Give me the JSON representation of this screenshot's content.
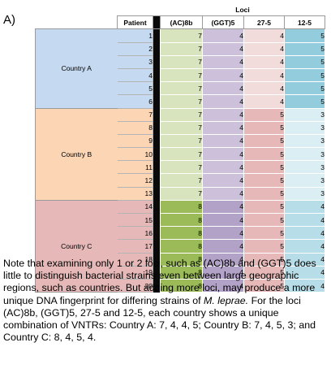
{
  "panel_label": "A)",
  "table": {
    "group_header": "Loci",
    "columns": [
      "Patient",
      "(AC)8b",
      "(GGT)5",
      "27-5",
      "12-5"
    ],
    "countries": [
      {
        "name": "Country A",
        "bg": "#c5d9f0",
        "patients": [
          "1",
          "2",
          "3",
          "4",
          "5",
          "6"
        ]
      },
      {
        "name": "Country B",
        "bg": "#fcd5b4",
        "patients": [
          "7",
          "8",
          "9",
          "10",
          "11",
          "12",
          "13"
        ]
      },
      {
        "name": "Country C",
        "bg": "#e6b9b8",
        "patients": [
          "14",
          "15",
          "16",
          "17",
          "18",
          "19",
          "20"
        ]
      }
    ],
    "rows": [
      [
        "7",
        "4",
        "4",
        "5"
      ],
      [
        "7",
        "4",
        "4",
        "5"
      ],
      [
        "7",
        "4",
        "4",
        "5"
      ],
      [
        "7",
        "4",
        "4",
        "5"
      ],
      [
        "7",
        "4",
        "4",
        "5"
      ],
      [
        "7",
        "4",
        "4",
        "5"
      ],
      [
        "7",
        "4",
        "5",
        "3"
      ],
      [
        "7",
        "4",
        "5",
        "3"
      ],
      [
        "7",
        "4",
        "5",
        "3"
      ],
      [
        "7",
        "4",
        "5",
        "3"
      ],
      [
        "7",
        "4",
        "5",
        "3"
      ],
      [
        "7",
        "4",
        "5",
        "3"
      ],
      [
        "7",
        "4",
        "5",
        "3"
      ],
      [
        "8",
        "4",
        "5",
        "4"
      ],
      [
        "8",
        "4",
        "5",
        "4"
      ],
      [
        "8",
        "4",
        "5",
        "4"
      ],
      [
        "8",
        "4",
        "5",
        "4"
      ],
      [
        "8",
        "4",
        "5",
        "4"
      ],
      [
        "8",
        "4",
        "5",
        "4"
      ],
      [
        "8",
        "4",
        "5",
        "4"
      ]
    ],
    "row_colors": [
      [
        "#d7e4bd",
        "#ccc0da",
        "#f2dcdb",
        "#93cddd"
      ],
      [
        "#d7e4bd",
        "#ccc0da",
        "#f2dcdb",
        "#93cddd"
      ],
      [
        "#d7e4bd",
        "#ccc0da",
        "#f2dcdb",
        "#93cddd"
      ],
      [
        "#d7e4bd",
        "#ccc0da",
        "#f2dcdb",
        "#93cddd"
      ],
      [
        "#d7e4bd",
        "#ccc0da",
        "#f2dcdb",
        "#93cddd"
      ],
      [
        "#d7e4bd",
        "#ccc0da",
        "#f2dcdb",
        "#93cddd"
      ],
      [
        "#d7e4bd",
        "#ccc0da",
        "#e6b9b8",
        "#dbeef4"
      ],
      [
        "#d7e4bd",
        "#ccc0da",
        "#e6b9b8",
        "#dbeef4"
      ],
      [
        "#d7e4bd",
        "#ccc0da",
        "#e6b9b8",
        "#dbeef4"
      ],
      [
        "#d7e4bd",
        "#ccc0da",
        "#e6b9b8",
        "#dbeef4"
      ],
      [
        "#d7e4bd",
        "#ccc0da",
        "#e6b9b8",
        "#dbeef4"
      ],
      [
        "#d7e4bd",
        "#ccc0da",
        "#e6b9b8",
        "#dbeef4"
      ],
      [
        "#d7e4bd",
        "#ccc0da",
        "#e6b9b8",
        "#dbeef4"
      ],
      [
        "#9bbb59",
        "#b3a2c7",
        "#e6b9b8",
        "#b7dee8"
      ],
      [
        "#9bbb59",
        "#b3a2c7",
        "#e6b9b8",
        "#b7dee8"
      ],
      [
        "#9bbb59",
        "#b3a2c7",
        "#e6b9b8",
        "#b7dee8"
      ],
      [
        "#9bbb59",
        "#b3a2c7",
        "#e6b9b8",
        "#b7dee8"
      ],
      [
        "#9bbb59",
        "#b3a2c7",
        "#e6b9b8",
        "#b7dee8"
      ],
      [
        "#9bbb59",
        "#b3a2c7",
        "#e6b9b8",
        "#b7dee8"
      ],
      [
        "#9bbb59",
        "#b3a2c7",
        "#e6b9b8",
        "#b7dee8"
      ]
    ]
  },
  "caption": {
    "part1": "Note that examining only 1 or 2 loci, such as (AC)8b and (GGT)5 does little to distinguish bacterial strains even between large geographic regions, such as countries.  But adding more loci, may produce a more unique DNA fingerprint for differing strains of ",
    "species": "M. leprae.",
    "part2": "  For the loci (AC)8b, (GGT)5, 27-5 and 12-5, each country shows a unique combination of VNTRs: Country A: 7, 4, 4, 5; Country B: 7, 4, 5, 3; and Country C: 8, 4, 5, 4."
  }
}
